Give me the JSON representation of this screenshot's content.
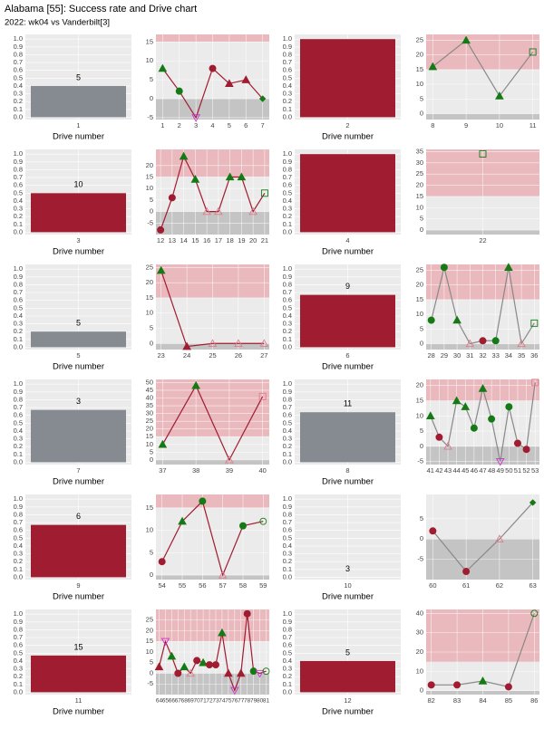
{
  "title": "Alabama [55]: Success rate and Drive chart",
  "subtitle": "2022: wk04 vs Vanderbilt[3]",
  "x_label": "Drive number",
  "bar_ylim": [
    -0.03,
    1.06
  ],
  "bar_yticks": [
    {
      "value": 0,
      "label": "0.0"
    },
    0.1,
    0.2,
    0.3,
    0.4,
    0.5,
    0.6,
    0.7,
    0.8,
    0.9,
    {
      "value": 1,
      "label": "1.0"
    }
  ],
  "bands": [
    0,
    15
  ],
  "drives": [
    {
      "drive": 1,
      "success_rate": 0.4,
      "label": 5,
      "color": "#858b91",
      "line_color": "#a01c30",
      "xlim": [
        0.6,
        7.4
      ],
      "ylim": [
        -5.5,
        17
      ],
      "yticks": [
        -5,
        0,
        5,
        10,
        15
      ],
      "plays": {
        "x": [
          1,
          2,
          3,
          4,
          5,
          6,
          7
        ],
        "values": [
          8,
          2,
          -5,
          8,
          4,
          5,
          0
        ],
        "markers": [
          "gt",
          "gc",
          "md",
          "rc",
          "rt",
          "rt",
          "gd"
        ]
      }
    },
    {
      "drive": 2,
      "success_rate": 1.0,
      "label": null,
      "color": "#a01c30",
      "line_color": "#888888",
      "xlim": [
        7.8,
        11.2
      ],
      "ylim": [
        -2,
        27
      ],
      "yticks": [
        0,
        5,
        10,
        15,
        20,
        25
      ],
      "plays": {
        "x": [
          8,
          9,
          10,
          11
        ],
        "values": [
          16,
          25,
          6,
          21
        ],
        "markers": [
          "gt",
          "gt",
          "gt",
          "gs"
        ]
      }
    },
    {
      "drive": 3,
      "success_rate": 0.5,
      "label": 10,
      "color": "#a01c30",
      "line_color": "#a01c30",
      "xlim": [
        11.6,
        21.4
      ],
      "ylim": [
        -10,
        27
      ],
      "yticks": [
        -5,
        0,
        5,
        10,
        15,
        20
      ],
      "plays": {
        "x": [
          12,
          13,
          14,
          15,
          16,
          17,
          18,
          19,
          20,
          21
        ],
        "values": [
          -8,
          6,
          24,
          14,
          0,
          0,
          15,
          15,
          0,
          8
        ],
        "markers": [
          "rc",
          "rc",
          "gt",
          "gt",
          "pt",
          "pt",
          "gt",
          "gt",
          "pt",
          "gs"
        ]
      }
    },
    {
      "drive": 4,
      "success_rate": 1.0,
      "label": null,
      "color": "#a01c30",
      "line_color": null,
      "xlim": [
        21.5,
        22.5
      ],
      "ylim": [
        -2,
        36
      ],
      "yticks": [
        0,
        5,
        10,
        15,
        20,
        25,
        30,
        35
      ],
      "plays": {
        "x": [
          22
        ],
        "values": [
          34
        ],
        "markers": [
          "gs"
        ]
      }
    },
    {
      "drive": 5,
      "success_rate": 0.2,
      "label": 5,
      "color": "#858b91",
      "line_color": "#a01c30",
      "xlim": [
        22.8,
        27.2
      ],
      "ylim": [
        -2,
        26
      ],
      "yticks": [
        0,
        5,
        10,
        15,
        20,
        25
      ],
      "plays": {
        "x": [
          23,
          24,
          25,
          26,
          27
        ],
        "values": [
          24,
          -1,
          0,
          0,
          0
        ],
        "markers": [
          "gt",
          "rt",
          "pt",
          "pt",
          "pt"
        ]
      }
    },
    {
      "drive": 6,
      "success_rate": 0.67,
      "label": 9,
      "color": "#a01c30",
      "line_color": "#888888",
      "xlim": [
        27.6,
        36.4
      ],
      "ylim": [
        -2,
        27
      ],
      "yticks": [
        0,
        5,
        10,
        15,
        20,
        25
      ],
      "plays": {
        "x": [
          28,
          29,
          30,
          31,
          32,
          33,
          34,
          35,
          36
        ],
        "values": [
          8,
          26,
          8,
          0,
          1,
          1,
          26,
          0,
          7
        ],
        "markers": [
          "gc",
          "gc",
          "gt",
          "pt",
          "rc",
          "gc",
          "gt",
          "pt",
          "gs"
        ]
      }
    },
    {
      "drive": 7,
      "success_rate": 0.67,
      "label": 3,
      "color": "#858b91",
      "line_color": "#a01c30",
      "xlim": [
        36.8,
        40.2
      ],
      "ylim": [
        -3,
        52
      ],
      "yticks": [
        0,
        5,
        10,
        15,
        20,
        25,
        30,
        35,
        40,
        45,
        50
      ],
      "plays": {
        "x": [
          37,
          38,
          39,
          40
        ],
        "values": [
          10,
          48,
          0,
          41
        ],
        "markers": [
          "gt",
          "gt",
          "pt",
          "ps"
        ]
      }
    },
    {
      "drive": 8,
      "success_rate": 0.64,
      "label": 11,
      "color": "#858b91",
      "line_color": "#888888",
      "xlim": [
        40.5,
        53.5
      ],
      "ylim": [
        -6,
        22
      ],
      "yticks": [
        -5,
        0,
        5,
        10,
        15,
        20
      ],
      "plays": {
        "x": [
          41,
          42,
          43,
          44,
          45,
          46,
          47,
          48,
          49,
          50,
          51,
          52,
          53
        ],
        "values": [
          10,
          3,
          0,
          15,
          13,
          6,
          19,
          9,
          -5,
          13,
          1,
          -1,
          21
        ],
        "markers": [
          "gt",
          "rc",
          "pt",
          "gt",
          "gt",
          "gc",
          "gt",
          "gc",
          "md",
          "gc",
          "rc",
          "rc",
          "ps"
        ]
      }
    },
    {
      "drive": 9,
      "success_rate": 0.67,
      "label": 6,
      "color": "#a01c30",
      "line_color": "#a01c30",
      "xlim": [
        53.7,
        59.3
      ],
      "ylim": [
        -1,
        18
      ],
      "yticks": [
        0,
        5,
        10,
        15
      ],
      "plays": {
        "x": [
          54,
          55,
          56,
          57,
          58,
          59
        ],
        "values": [
          3,
          12,
          16.5,
          0,
          11,
          12
        ],
        "markers": [
          "rc",
          "gt",
          "gc",
          "pt",
          "gc",
          "go"
        ]
      }
    },
    {
      "drive": 10,
      "success_rate": 0,
      "label": 3,
      "color": "#858b91",
      "line_color": "#888888",
      "xlim": [
        59.8,
        63.2
      ],
      "ylim": [
        -10,
        11
      ],
      "yticks": [
        -5,
        0,
        5
      ],
      "plays": {
        "x": [
          60,
          61,
          62,
          63
        ],
        "values": [
          2,
          -8,
          0,
          9
        ],
        "markers": [
          "rc",
          "rc",
          "pt",
          "gd"
        ]
      }
    },
    {
      "drive": 11,
      "success_rate": 0.47,
      "label": 15,
      "color": "#a01c30",
      "line_color": "#a01c30",
      "xlim": [
        63.5,
        81.5
      ],
      "ylim": [
        -10,
        30
      ],
      "yticks": [
        -5,
        0,
        5,
        10,
        15,
        20,
        25
      ],
      "plays": {
        "x": [
          64,
          65,
          66,
          67,
          68,
          69,
          70,
          71,
          72,
          73,
          74,
          75,
          76,
          77,
          78,
          79,
          80,
          81
        ],
        "values": [
          3,
          15,
          8,
          0,
          3,
          0,
          6,
          5,
          4,
          4,
          19,
          0,
          -8,
          0,
          28,
          1,
          0,
          1
        ],
        "markers": [
          "rt",
          "md",
          "gt",
          "rc",
          "gt",
          "pt",
          "rc",
          "gt",
          "rc",
          "rc",
          "gt",
          "rt",
          "md",
          "rt",
          "rc",
          "gc",
          "md",
          "go"
        ]
      }
    },
    {
      "drive": 12,
      "success_rate": 0.4,
      "label": 5,
      "color": "#a01c30",
      "line_color": "#888888",
      "xlim": [
        81.8,
        86.2
      ],
      "ylim": [
        -2,
        42
      ],
      "yticks": [
        0,
        10,
        20,
        30,
        40
      ],
      "plays": {
        "x": [
          82,
          83,
          84,
          85,
          86
        ],
        "values": [
          3,
          3,
          5,
          2,
          40
        ],
        "markers": [
          "rc",
          "rc",
          "gt",
          "rc",
          "go"
        ]
      }
    }
  ]
}
